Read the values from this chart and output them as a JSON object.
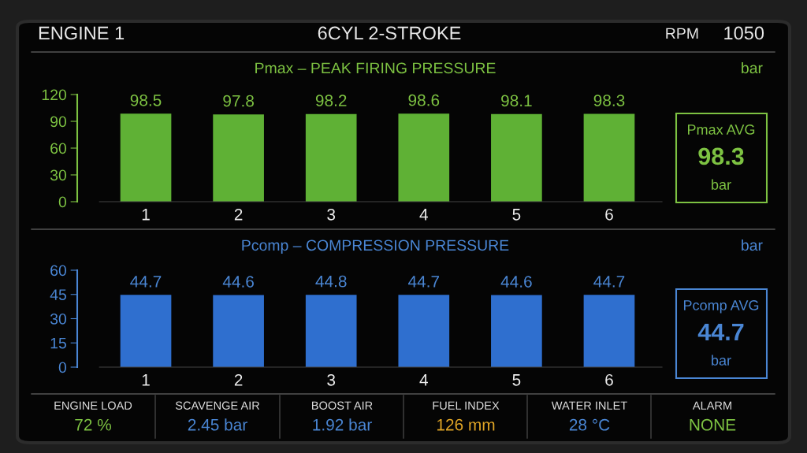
{
  "chart_data": [
    {
      "type": "other",
      "title": "6CYL 2-STROKE",
      "annotations": [
        "ENGINE 1",
        "RPM",
        "1050"
      ]
    },
    {
      "type": "bar",
      "title": "Pmax – PEAK FIRING PRESSURE",
      "ylabel": "bar",
      "categories": [
        "1",
        "2",
        "3",
        "4",
        "5",
        "6"
      ],
      "values": [
        98.5,
        97.8,
        98.2,
        98.6,
        98.1,
        98.3
      ],
      "color": "#5fb135",
      "ylim": [
        0,
        120
      ],
      "yticks": [
        0,
        30,
        60,
        90,
        120
      ],
      "data_labels": true,
      "grid": false,
      "annotations": [
        "Pmax AVG",
        "98.3",
        "bar"
      ]
    },
    {
      "type": "bar",
      "title": "Pcomp – COMPRESSION PRESSURE",
      "ylabel": "bar",
      "categories": [
        "1",
        "2",
        "3",
        "4",
        "5",
        "6"
      ],
      "values": [
        44.7,
        44.6,
        44.8,
        44.7,
        44.6,
        44.7
      ],
      "color": "#2f6fcf",
      "ylim": [
        0,
        60
      ],
      "yticks": [
        0,
        15,
        30,
        45,
        60
      ],
      "data_labels": true,
      "grid": false,
      "annotations": [
        "Pcomp AVG",
        "44.7",
        "bar"
      ]
    },
    {
      "type": "other",
      "categories": [
        "ENGINE LOAD",
        "SCAVENGE AIR",
        "BOOST AIR",
        "FUEL INDEX",
        "WATER INLET",
        "ALARM"
      ],
      "value_labels": [
        "72 %",
        "2.45 bar",
        "1.92 bar",
        "126 mm",
        "28 °C",
        "NONE"
      ],
      "colors": [
        "#7dc242",
        "#4a86d4",
        "#4a86d4",
        "#e0a526",
        "#4a86d4",
        "#7dc242"
      ]
    }
  ]
}
